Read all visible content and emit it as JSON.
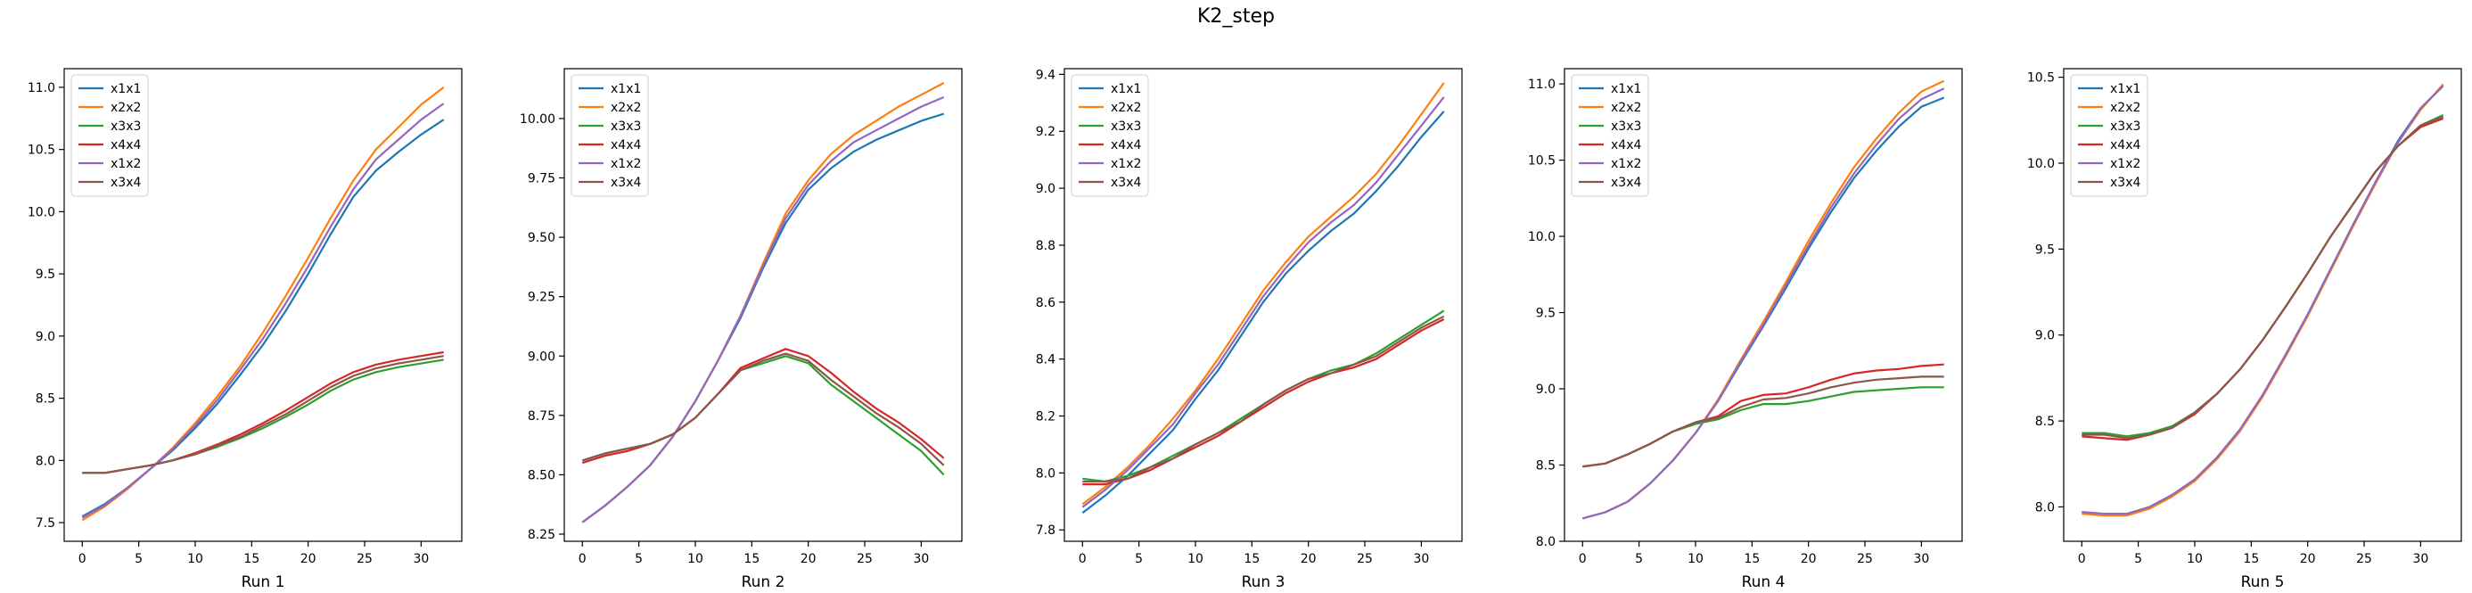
{
  "figure": {
    "title": "K2_step",
    "colors": {
      "x1x1": "#1f77b4",
      "x2x2": "#ff7f0e",
      "x3x3": "#2ca02c",
      "x4x4": "#d62728",
      "x1x2": "#9467bd",
      "x3x4": "#8c564b"
    }
  },
  "chart_data": [
    {
      "type": "line",
      "xlabel": "Run 1",
      "ylim": [
        7.35,
        11.15
      ],
      "xlim": [
        -1.6,
        33.6
      ],
      "xticks": [
        0,
        5,
        10,
        15,
        20,
        25,
        30
      ],
      "yticks": [
        7.5,
        8.0,
        8.5,
        9.0,
        9.5,
        10.0,
        10.5,
        11.0
      ],
      "ytick_labels": [
        "7.5",
        "8.0",
        "8.5",
        "9.0",
        "9.5",
        "10.0",
        "10.5",
        "11.0"
      ],
      "legend": "top-left",
      "x": [
        0,
        2,
        4,
        6,
        8,
        10,
        12,
        14,
        16,
        18,
        20,
        22,
        24,
        26,
        28,
        30,
        32
      ],
      "series": [
        {
          "name": "x1x1",
          "values": [
            7.55,
            7.65,
            7.78,
            7.93,
            8.08,
            8.26,
            8.46,
            8.69,
            8.93,
            9.2,
            9.5,
            9.82,
            10.12,
            10.33,
            10.48,
            10.62,
            10.74
          ]
        },
        {
          "name": "x2x2",
          "values": [
            7.52,
            7.63,
            7.77,
            7.93,
            8.1,
            8.3,
            8.52,
            8.76,
            9.03,
            9.32,
            9.63,
            9.95,
            10.25,
            10.5,
            10.68,
            10.86,
            11.0
          ]
        },
        {
          "name": "x3x3",
          "values": [
            7.9,
            7.9,
            7.93,
            7.96,
            8.0,
            8.05,
            8.11,
            8.18,
            8.26,
            8.35,
            8.45,
            8.56,
            8.65,
            8.71,
            8.75,
            8.78,
            8.81
          ]
        },
        {
          "name": "x4x4",
          "values": [
            7.9,
            7.9,
            7.93,
            7.96,
            8.0,
            8.06,
            8.13,
            8.21,
            8.3,
            8.4,
            8.51,
            8.62,
            8.71,
            8.77,
            8.81,
            8.84,
            8.87
          ]
        },
        {
          "name": "x1x2",
          "values": [
            7.54,
            7.64,
            7.78,
            7.93,
            8.09,
            8.28,
            8.49,
            8.73,
            8.98,
            9.26,
            9.56,
            9.88,
            10.18,
            10.42,
            10.58,
            10.74,
            10.87
          ]
        },
        {
          "name": "x3x4",
          "values": [
            7.9,
            7.9,
            7.93,
            7.96,
            8.0,
            8.05,
            8.12,
            8.19,
            8.28,
            8.37,
            8.48,
            8.59,
            8.68,
            8.74,
            8.78,
            8.81,
            8.84
          ]
        }
      ]
    },
    {
      "type": "line",
      "xlabel": "Run 2",
      "ylim": [
        8.22,
        10.21
      ],
      "xlim": [
        -1.6,
        33.6
      ],
      "xticks": [
        0,
        5,
        10,
        15,
        20,
        25,
        30
      ],
      "yticks": [
        8.25,
        8.5,
        8.75,
        9.0,
        9.25,
        9.5,
        9.75,
        10.0
      ],
      "ytick_labels": [
        "8.25",
        "8.50",
        "8.75",
        "9.00",
        "9.25",
        "9.50",
        "9.75",
        "10.00"
      ],
      "legend": "top-left",
      "x": [
        0,
        2,
        4,
        6,
        8,
        10,
        12,
        14,
        16,
        18,
        20,
        22,
        24,
        26,
        28,
        30,
        32
      ],
      "series": [
        {
          "name": "x1x1",
          "values": [
            8.3,
            8.37,
            8.45,
            8.54,
            8.66,
            8.81,
            8.98,
            9.16,
            9.37,
            9.56,
            9.7,
            9.79,
            9.86,
            9.91,
            9.95,
            9.99,
            10.02
          ]
        },
        {
          "name": "x2x2",
          "values": [
            8.3,
            8.37,
            8.45,
            8.54,
            8.66,
            8.81,
            8.98,
            9.17,
            9.39,
            9.6,
            9.74,
            9.85,
            9.93,
            9.99,
            10.05,
            10.1,
            10.15
          ]
        },
        {
          "name": "x3x3",
          "values": [
            8.56,
            8.59,
            8.61,
            8.63,
            8.67,
            8.74,
            8.84,
            8.94,
            8.97,
            9.0,
            8.97,
            8.88,
            8.81,
            8.74,
            8.67,
            8.6,
            8.5
          ]
        },
        {
          "name": "x4x4",
          "values": [
            8.55,
            8.58,
            8.6,
            8.63,
            8.67,
            8.74,
            8.84,
            8.95,
            8.99,
            9.03,
            9.0,
            8.93,
            8.85,
            8.78,
            8.72,
            8.65,
            8.57
          ]
        },
        {
          "name": "x1x2",
          "values": [
            8.3,
            8.37,
            8.45,
            8.54,
            8.66,
            8.81,
            8.98,
            9.17,
            9.38,
            9.58,
            9.72,
            9.82,
            9.9,
            9.95,
            10.0,
            10.05,
            10.09
          ]
        },
        {
          "name": "x3x4",
          "values": [
            8.56,
            8.59,
            8.61,
            8.63,
            8.67,
            8.74,
            8.84,
            8.94,
            8.98,
            9.01,
            8.98,
            8.9,
            8.83,
            8.76,
            8.7,
            8.63,
            8.54
          ]
        }
      ]
    },
    {
      "type": "line",
      "xlabel": "Run 3",
      "ylim": [
        7.76,
        9.42
      ],
      "xlim": [
        -1.6,
        33.6
      ],
      "xticks": [
        0,
        5,
        10,
        15,
        20,
        25,
        30
      ],
      "yticks": [
        7.8,
        8.0,
        8.2,
        8.4,
        8.6,
        8.8,
        9.0,
        9.2,
        9.4
      ],
      "ytick_labels": [
        "7.8",
        "8.0",
        "8.2",
        "8.4",
        "8.6",
        "8.8",
        "9.0",
        "9.2",
        "9.4"
      ],
      "legend": "top-left",
      "x": [
        0,
        2,
        4,
        6,
        8,
        10,
        12,
        14,
        16,
        18,
        20,
        22,
        24,
        26,
        28,
        30,
        32
      ],
      "series": [
        {
          "name": "x1x1",
          "values": [
            7.86,
            7.92,
            7.99,
            8.07,
            8.15,
            8.26,
            8.36,
            8.48,
            8.6,
            8.7,
            8.78,
            8.85,
            8.91,
            8.99,
            9.08,
            9.18,
            9.27
          ]
        },
        {
          "name": "x2x2",
          "values": [
            7.89,
            7.95,
            8.02,
            8.1,
            8.19,
            8.29,
            8.4,
            8.52,
            8.64,
            8.74,
            8.83,
            8.9,
            8.97,
            9.05,
            9.15,
            9.26,
            9.37
          ]
        },
        {
          "name": "x3x3",
          "values": [
            7.98,
            7.97,
            7.99,
            8.02,
            8.06,
            8.1,
            8.14,
            8.19,
            8.24,
            8.29,
            8.33,
            8.36,
            8.38,
            8.42,
            8.47,
            8.52,
            8.57
          ]
        },
        {
          "name": "x4x4",
          "values": [
            7.96,
            7.96,
            7.98,
            8.01,
            8.05,
            8.09,
            8.13,
            8.18,
            8.23,
            8.28,
            8.32,
            8.35,
            8.37,
            8.4,
            8.45,
            8.5,
            8.54
          ]
        },
        {
          "name": "x1x2",
          "values": [
            7.88,
            7.94,
            8.01,
            8.09,
            8.17,
            8.28,
            8.38,
            8.5,
            8.62,
            8.72,
            8.81,
            8.88,
            8.94,
            9.02,
            9.12,
            9.22,
            9.32
          ]
        },
        {
          "name": "x3x4",
          "values": [
            7.97,
            7.97,
            7.98,
            8.02,
            8.05,
            8.1,
            8.14,
            8.18,
            8.24,
            8.29,
            8.33,
            8.35,
            8.38,
            8.41,
            8.46,
            8.51,
            8.55
          ]
        }
      ]
    },
    {
      "type": "line",
      "xlabel": "Run 4",
      "ylim": [
        8.0,
        11.1
      ],
      "xlim": [
        -1.6,
        33.6
      ],
      "xticks": [
        0,
        5,
        10,
        15,
        20,
        25,
        30
      ],
      "yticks": [
        8.0,
        8.5,
        9.0,
        9.5,
        10.0,
        10.5,
        11.0
      ],
      "ytick_labels": [
        "8.0",
        "8.5",
        "9.0",
        "9.5",
        "10.0",
        "10.5",
        "11.0"
      ],
      "legend": "top-left",
      "x": [
        0,
        2,
        4,
        6,
        8,
        10,
        12,
        14,
        16,
        18,
        20,
        22,
        24,
        26,
        28,
        30,
        32
      ],
      "series": [
        {
          "name": "x1x1",
          "values": [
            8.15,
            8.19,
            8.26,
            8.38,
            8.53,
            8.71,
            8.92,
            9.17,
            9.41,
            9.66,
            9.92,
            10.16,
            10.38,
            10.56,
            10.72,
            10.85,
            10.91
          ]
        },
        {
          "name": "x2x2",
          "values": [
            8.15,
            8.19,
            8.26,
            8.38,
            8.53,
            8.71,
            8.93,
            9.19,
            9.44,
            9.7,
            9.97,
            10.22,
            10.45,
            10.64,
            10.81,
            10.95,
            11.02
          ]
        },
        {
          "name": "x3x3",
          "values": [
            8.49,
            8.51,
            8.57,
            8.64,
            8.72,
            8.77,
            8.8,
            8.86,
            8.9,
            8.9,
            8.92,
            8.95,
            8.98,
            8.99,
            9.0,
            9.01,
            9.01
          ]
        },
        {
          "name": "x4x4",
          "values": [
            8.49,
            8.51,
            8.57,
            8.64,
            8.72,
            8.78,
            8.82,
            8.92,
            8.96,
            8.97,
            9.01,
            9.06,
            9.1,
            9.12,
            9.13,
            9.15,
            9.16
          ]
        },
        {
          "name": "x1x2",
          "values": [
            8.15,
            8.19,
            8.26,
            8.38,
            8.53,
            8.71,
            8.92,
            9.18,
            9.42,
            9.68,
            9.94,
            10.19,
            10.41,
            10.6,
            10.77,
            10.9,
            10.97
          ]
        },
        {
          "name": "x3x4",
          "values": [
            8.49,
            8.51,
            8.57,
            8.64,
            8.72,
            8.78,
            8.81,
            8.88,
            8.93,
            8.94,
            8.97,
            9.01,
            9.04,
            9.06,
            9.07,
            9.08,
            9.08
          ]
        }
      ]
    },
    {
      "type": "line",
      "xlabel": "Run 5",
      "ylim": [
        7.8,
        10.55
      ],
      "xlim": [
        -1.6,
        33.6
      ],
      "xticks": [
        0,
        5,
        10,
        15,
        20,
        25,
        30
      ],
      "yticks": [
        8.0,
        8.5,
        9.0,
        9.5,
        10.0,
        10.5
      ],
      "ytick_labels": [
        "8.0",
        "8.5",
        "9.0",
        "9.5",
        "10.0",
        "10.5"
      ],
      "legend": "top-left",
      "x": [
        0,
        2,
        4,
        6,
        8,
        10,
        12,
        14,
        16,
        18,
        20,
        22,
        24,
        26,
        28,
        30,
        32
      ],
      "series": [
        {
          "name": "x1x1",
          "values": [
            7.97,
            7.96,
            7.96,
            8.0,
            8.07,
            8.16,
            8.29,
            8.45,
            8.65,
            8.88,
            9.12,
            9.38,
            9.64,
            9.89,
            10.13,
            10.32,
            10.45
          ]
        },
        {
          "name": "x2x2",
          "values": [
            7.96,
            7.95,
            7.95,
            7.99,
            8.06,
            8.15,
            8.28,
            8.44,
            8.64,
            8.87,
            9.11,
            9.37,
            9.63,
            9.88,
            10.12,
            10.31,
            10.46
          ]
        },
        {
          "name": "x3x3",
          "values": [
            8.43,
            8.43,
            8.41,
            8.43,
            8.47,
            8.55,
            8.66,
            8.8,
            8.97,
            9.16,
            9.36,
            9.57,
            9.76,
            9.95,
            10.1,
            10.22,
            10.28
          ]
        },
        {
          "name": "x4x4",
          "values": [
            8.41,
            8.4,
            8.39,
            8.42,
            8.46,
            8.54,
            8.66,
            8.8,
            8.97,
            9.16,
            9.36,
            9.57,
            9.76,
            9.95,
            10.1,
            10.21,
            10.26
          ]
        },
        {
          "name": "x1x2",
          "values": [
            7.97,
            7.96,
            7.96,
            8.0,
            8.07,
            8.16,
            8.29,
            8.45,
            8.65,
            8.88,
            9.12,
            9.38,
            9.64,
            9.89,
            10.12,
            10.32,
            10.45
          ]
        },
        {
          "name": "x3x4",
          "values": [
            8.42,
            8.42,
            8.4,
            8.42,
            8.46,
            8.55,
            8.66,
            8.8,
            8.97,
            9.16,
            9.36,
            9.57,
            9.76,
            9.95,
            10.1,
            10.22,
            10.27
          ]
        }
      ]
    }
  ]
}
